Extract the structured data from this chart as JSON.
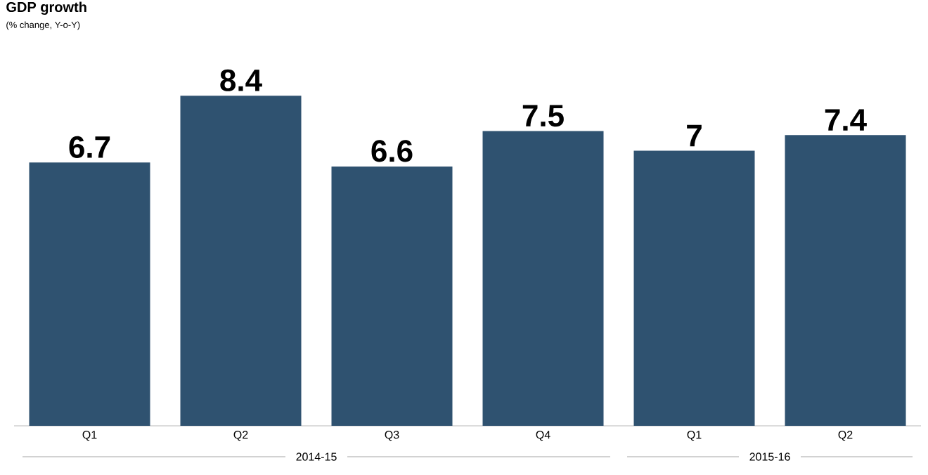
{
  "chart_data": {
    "type": "bar",
    "title": "GDP growth",
    "subtitle": "(% change, Y-o-Y)",
    "categories": [
      "Q1",
      "Q2",
      "Q3",
      "Q4",
      "Q1",
      "Q2"
    ],
    "values": [
      6.7,
      8.4,
      6.6,
      7.5,
      7,
      7.4
    ],
    "color": "#2f5270",
    "data_labels": true,
    "annotations": [
      "2014-15",
      "2015-16"
    ]
  }
}
